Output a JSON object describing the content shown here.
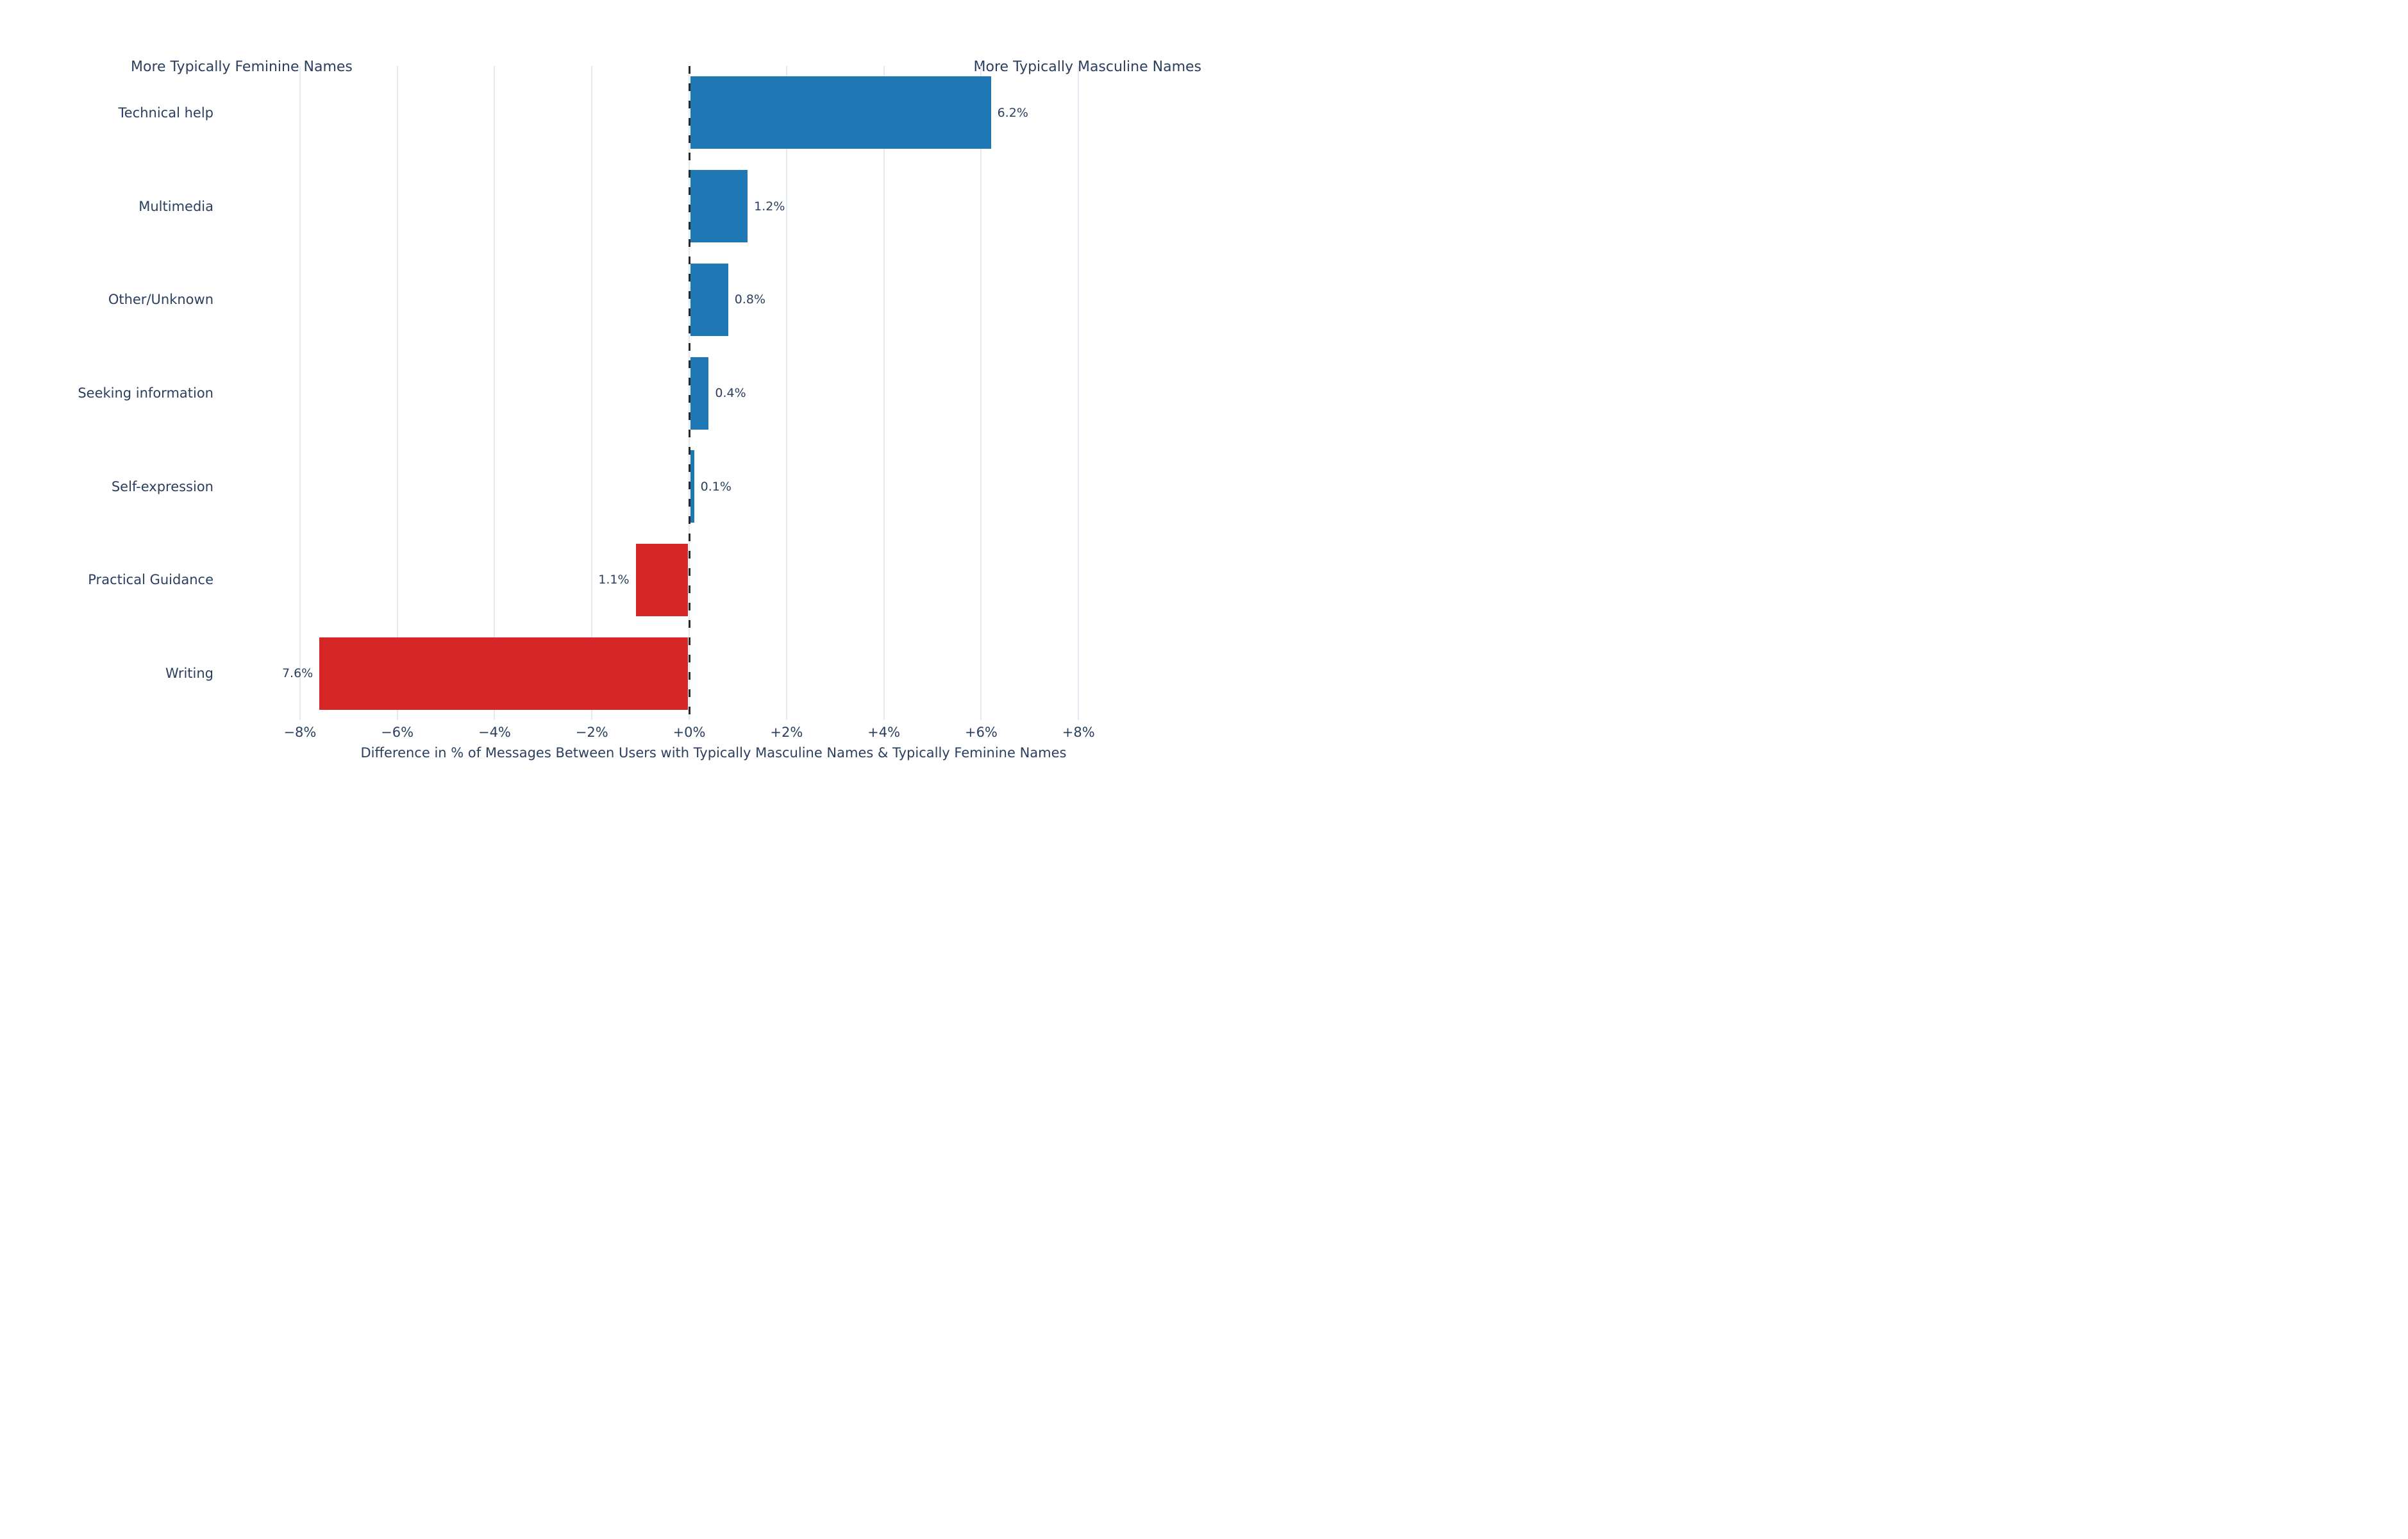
{
  "chart_data": {
    "type": "bar",
    "orientation": "horizontal",
    "title": "",
    "categories": [
      "Technical help",
      "Multimedia",
      "Other/Unknown",
      "Seeking information",
      "Self-expression",
      "Practical Guidance",
      "Writing"
    ],
    "values": [
      6.2,
      1.2,
      0.8,
      0.4,
      0.1,
      -1.1,
      -7.6
    ],
    "value_labels": [
      "6.2%",
      "1.2%",
      "0.8%",
      "0.4%",
      "0.1%",
      "1.1%",
      "7.6%"
    ],
    "xlabel": "Difference in % of Messages Between Users with Typically Masculine Names & Typically Feminine Names",
    "ylabel": "",
    "x_ticks": [
      -8,
      -6,
      -4,
      -2,
      0,
      2,
      4,
      6,
      8
    ],
    "x_tick_labels": [
      "−8%",
      "−6%",
      "−4%",
      "−2%",
      "+0%",
      "+2%",
      "+4%",
      "+6%",
      "+8%"
    ],
    "xlim": [
      -9.5,
      10.5
    ],
    "grid": true,
    "zero_line_style": "dashed",
    "legend": "none",
    "annotations": {
      "left": "More Typically Feminine Names",
      "right": "More Typically Masculine Names"
    },
    "colors": {
      "positive_bar": "#1f77b4",
      "negative_bar": "#d62728",
      "text": "#2a3f5f",
      "grid": "#e3eaf4",
      "zero_line": "#26282a",
      "background": "#ffffff"
    }
  }
}
